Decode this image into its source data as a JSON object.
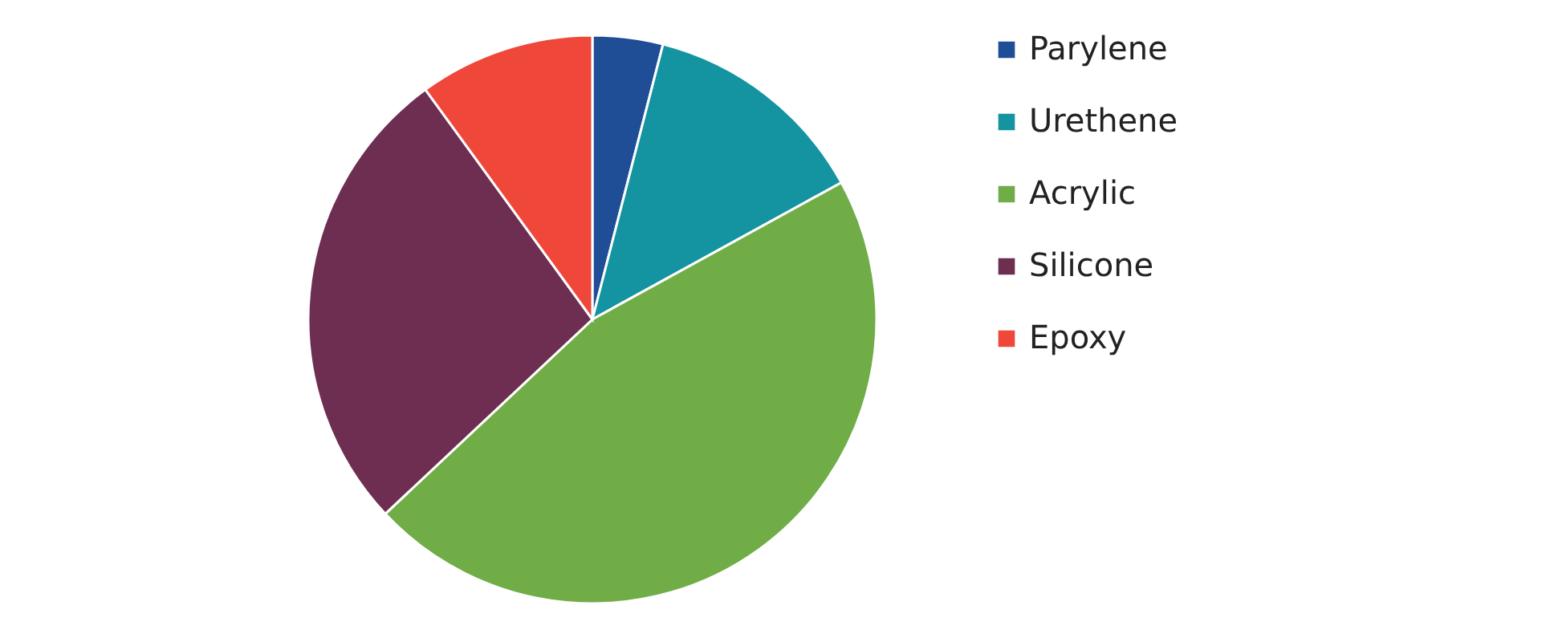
{
  "chart_data": {
    "type": "pie",
    "categories": [
      "Parylene",
      "Urethene",
      "Acrylic",
      "Silicone",
      "Epoxy"
    ],
    "values": [
      4,
      13,
      46,
      27,
      10
    ],
    "colors": [
      "#1f4e96",
      "#1493a0",
      "#70ad47",
      "#6d2e52",
      "#ef473a"
    ],
    "legend": "right"
  }
}
